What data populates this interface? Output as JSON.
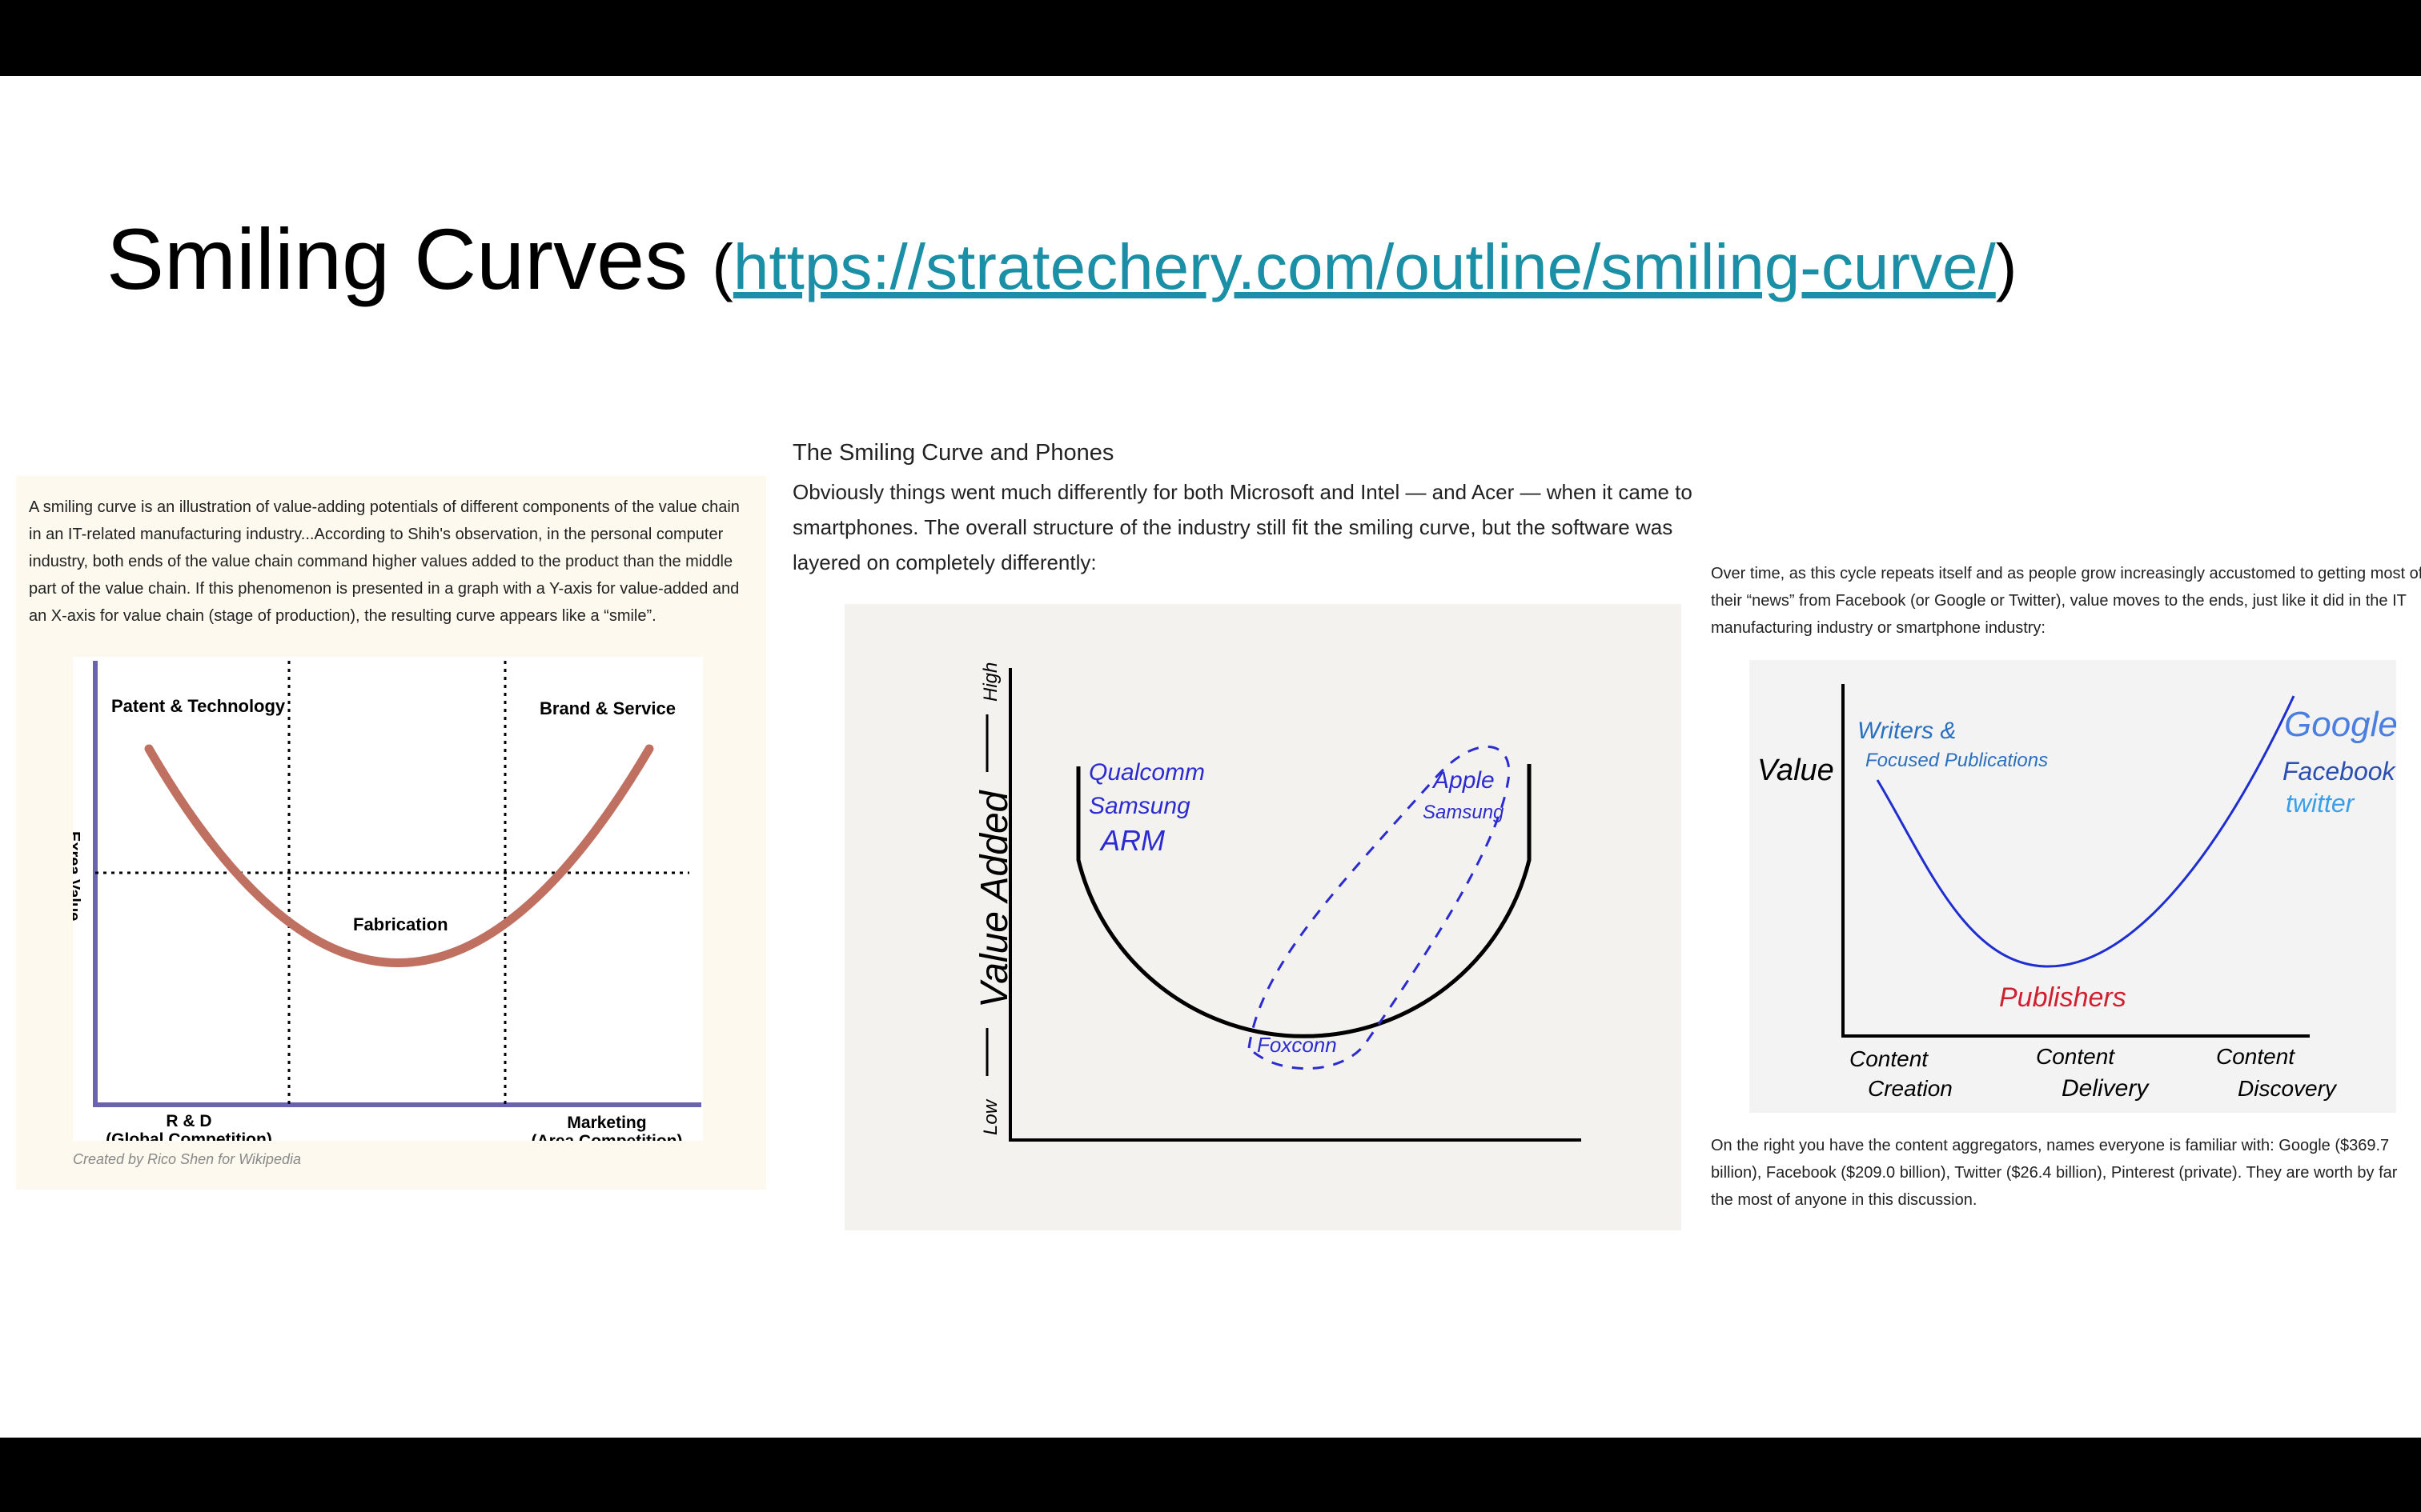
{
  "slide": {
    "title": "Smiling Curves",
    "paren_open": "(",
    "link": "https://stratechery.com/outline/smiling-curve/",
    "paren_close": ")"
  },
  "left_panel": {
    "text": "A smiling curve is an illustration of value-adding potentials of different components of the value chain in an IT-related manufacturing industry...According to Shih's observation, in the personal computer industry, both ends of the value chain command higher values added to the product than the middle part of the value chain. If this phenomenon is presented in a graph with a Y-axis for value-added and an X-axis for value chain (stage of production), the resulting curve appears like a “smile”.",
    "credit": "Created by Rico Shen for Wikipedia",
    "chart": {
      "label_top_left": "Patent & Technology",
      "label_top_right": "Brand & Service",
      "label_middle": "Fabrication",
      "ylabel": "Exrea Value",
      "x_left_1": "R & D",
      "x_left_2": "(Global Competition)",
      "x_right_1": "Marketing",
      "x_right_2": "(Area Competition)",
      "curve_color": "#c07060",
      "axis_color": "#6a63b0"
    }
  },
  "middle": {
    "heading": "The Smiling Curve and Phones",
    "text": "Obviously things went much differently for both Microsoft and Intel — and Acer — when it came to smartphones. The overall structure of the industry still fit the smiling curve, but the software was layered on completely differently:",
    "chart": {
      "ylabel": "Value Added",
      "y_high": "High",
      "y_low": "Low",
      "left_1": "Qualcomm",
      "left_2": "Samsung",
      "left_3": "ARM",
      "right_1": "Apple",
      "right_2": "Samsung",
      "bottom": "Foxconn",
      "ink_color": "#2b2bd0"
    }
  },
  "right": {
    "text1_l1": "Over time, as this cycle repeats itself and as people grow increasingly accustomed to getting most of",
    "text1_l2": "their “news” from Facebook (or Google or Twitter), value moves to the ends, just like it did in the IT",
    "text1_l3": "manufacturing industry or smartphone industry:",
    "text2": "On the right you have the content aggregators, names everyone is familiar with: Google ($369.7 billion), Facebook ($209.0 billion), Twitter ($26.4 billion), Pinterest (private). They are worth by far the most of anyone in this discussion.",
    "chart": {
      "ylabel": "Value",
      "left_1": "Writers &",
      "left_2": "Focused Publications",
      "bottom": "Publishers",
      "right_google": "Google",
      "right_facebook": "Facebook",
      "right_twitter": "twitter",
      "x1_a": "Content",
      "x1_b": "Creation",
      "x2_a": "Content",
      "x2_b": "Delivery",
      "x3_a": "Content",
      "x3_b": "Discovery",
      "blue": "#2a6fc0",
      "red": "#d01f2f"
    }
  }
}
